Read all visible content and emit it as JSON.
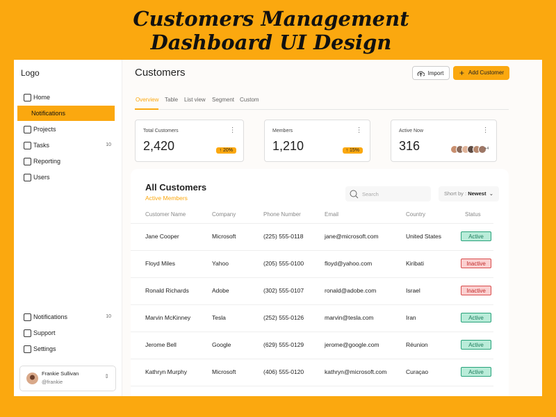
{
  "header": {
    "title_line1": "Customers Management",
    "title_line2": "Dashboard UI Design"
  },
  "sidebar": {
    "logo": "Logo",
    "nav": [
      {
        "label": "Home"
      },
      {
        "label": "Notifications"
      },
      {
        "label": "Projects"
      },
      {
        "label": "Tasks",
        "badge": "10"
      },
      {
        "label": "Reporting"
      },
      {
        "label": "Users"
      }
    ],
    "bottom_nav": [
      {
        "label": "Notifications",
        "badge": "10"
      },
      {
        "label": "Support"
      },
      {
        "label": "Settings"
      }
    ],
    "user": {
      "name": "Frankie Sullivan",
      "handle": "@frankie"
    }
  },
  "main": {
    "title": "Customers",
    "import_button": "Import",
    "add_button": "Add Customer",
    "tabs": [
      "Overview",
      "Table",
      "List view",
      "Segment",
      "Custom"
    ],
    "stats": [
      {
        "label": "Total Customers",
        "value": "2,420",
        "change": "20%"
      },
      {
        "label": "Members",
        "value": "1,210",
        "change": "15%"
      },
      {
        "label": "Active Now",
        "value": "316",
        "more": "+4"
      }
    ]
  },
  "table": {
    "title": "All Customers",
    "subtitle": "Active Members",
    "search_placeholder": "Search",
    "sort_label": "Short by :",
    "sort_value": "Newest",
    "columns": [
      "Customer Name",
      "Company",
      "Phone Number",
      "Email",
      "Country",
      "Status"
    ],
    "rows": [
      [
        "Jane Cooper",
        "Microsoft",
        "(225) 555-0118",
        "jane@microsoft.com",
        "United States",
        "Active"
      ],
      [
        "Floyd Miles",
        "Yahoo",
        "(205) 555-0100",
        "floyd@yahoo.com",
        "Kiribati",
        "Inactive"
      ],
      [
        "Ronald Richards",
        "Adobe",
        "(302) 555-0107",
        "ronald@adobe.com",
        "Israel",
        "Inactive"
      ],
      [
        "Marvin McKinney",
        "Tesla",
        "(252) 555-0126",
        "marvin@tesla.com",
        "Iran",
        "Active"
      ],
      [
        "Jerome Bell",
        "Google",
        "(629) 555-0129",
        "jerome@google.com",
        "Réunion",
        "Active"
      ],
      [
        "Kathryn Murphy",
        "Microsoft",
        "(406) 555-0120",
        "kathryn@microsoft.com",
        "Curaçao",
        "Active"
      ]
    ]
  }
}
